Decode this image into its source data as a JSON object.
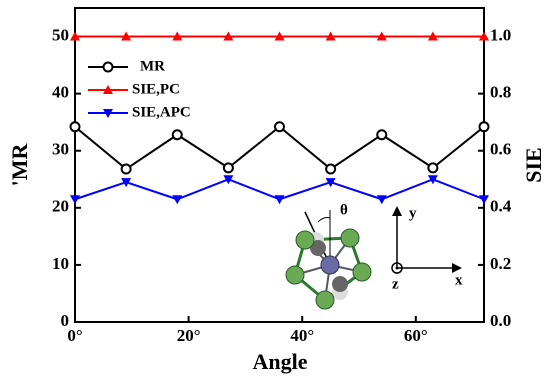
{
  "chart_data": {
    "type": "line",
    "x": [
      0,
      9,
      18,
      27,
      36,
      45,
      54,
      63,
      72
    ],
    "xlim": [
      0,
      72
    ],
    "xticks": [
      {
        "value": 0,
        "label": "0°"
      },
      {
        "value": 20,
        "label": "20°"
      },
      {
        "value": 40,
        "label": "40°"
      },
      {
        "value": 60,
        "label": "60°"
      }
    ],
    "ylim": [
      0,
      55
    ],
    "yticks": [
      0,
      10,
      20,
      30,
      40,
      50
    ],
    "y2lim": [
      0,
      1.1
    ],
    "y2ticks": [
      {
        "value": 0,
        "label": "0.0"
      },
      0.2,
      0.4,
      0.6,
      0.8,
      {
        "value": 1,
        "label": "1.0"
      }
    ],
    "xlabel": "Angle",
    "ylabel": "'MR",
    "y2label": "SIE",
    "legend": "upper left",
    "series": [
      {
        "name": "MR",
        "color": "#000000",
        "marker": "circle",
        "values": [
          34.2,
          26.8,
          32.8,
          27,
          34.2,
          26.8,
          32.8,
          27,
          34.2
        ]
      },
      {
        "name": "SIE,PC",
        "color": "#ff0000",
        "marker": "triangle-up",
        "axis": "y2",
        "values": [
          1,
          1,
          1,
          1,
          1,
          1,
          1,
          1,
          1
        ]
      },
      {
        "name": "SIE,APC",
        "color": "#0000ff",
        "marker": "triangle-down",
        "axis": "y2",
        "values": [
          0.43,
          0.49,
          0.43,
          0.5,
          0.43,
          0.49,
          0.43,
          0.5,
          0.43
        ]
      }
    ],
    "inset_labels": {
      "angle": "θ",
      "x": "x",
      "y": "y",
      "z": "z"
    }
  }
}
